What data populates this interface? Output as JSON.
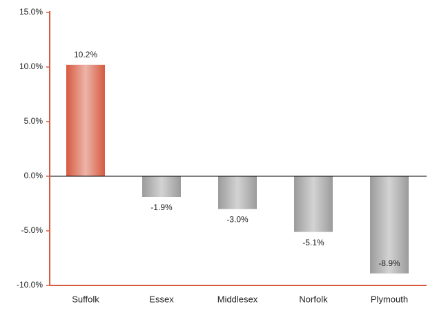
{
  "chart_data": {
    "type": "bar",
    "categories": [
      "Suffolk",
      "Essex",
      "Middlesex",
      "Norfolk",
      "Plymouth"
    ],
    "values": [
      10.2,
      -1.9,
      -3.0,
      -5.1,
      -8.9
    ],
    "value_labels": [
      "10.2%",
      "-1.9%",
      "-3.0%",
      "-5.1%",
      "-8.9%"
    ],
    "colors": [
      "#d65a40",
      "#9c9c9c",
      "#9c9c9c",
      "#9c9c9c",
      "#9c9c9c"
    ],
    "ylim": [
      -10,
      15
    ],
    "yticks": [
      {
        "value": -10,
        "label": "-10.0%"
      },
      {
        "value": -5,
        "label": "-5.0%"
      },
      {
        "value": 0,
        "label": "0.0%"
      },
      {
        "value": 5,
        "label": "5.0%"
      },
      {
        "value": 10,
        "label": "10.0%"
      },
      {
        "value": 15,
        "label": "15.0%"
      }
    ],
    "axis_color": "#d65a40"
  }
}
